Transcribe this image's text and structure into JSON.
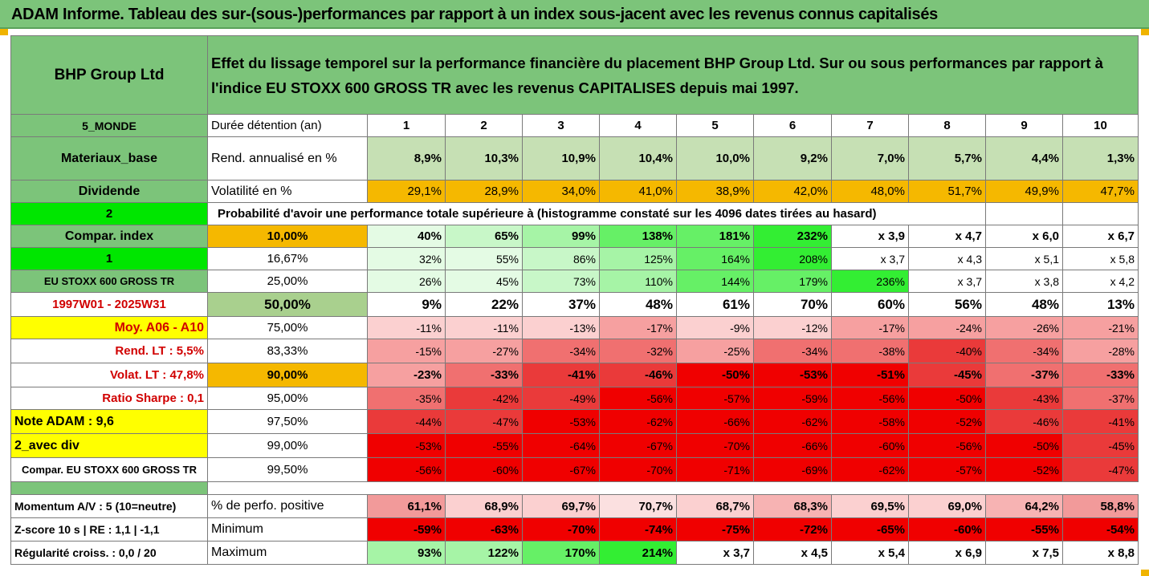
{
  "title": "ADAM Informe. Tableau des sur-(sous-)performances par rapport à un index sous-jacent avec les revenus connus capitalisés",
  "company": "BHP Group Ltd",
  "description_line1": "Effet du lissage temporel sur la performance financière du placement BHP Group Ltd. Sur ou sous performances par rapport à",
  "description_line2": "l'indice EU STOXX 600 GROSS TR avec les revenus CAPITALISES depuis mai 1997.",
  "left_labels": {
    "zone": "5_MONDE",
    "sector": "Materiaux_base",
    "dividend": "Dividende",
    "param": "2",
    "compar": "Compar. index",
    "param2": "1",
    "index_name": "EU STOXX 600 GROSS TR",
    "period": "1997W01 - 2025W31",
    "moy": "Moy. A06 - A10",
    "rend_lt": "Rend. LT :   5,5%",
    "volat_lt": "Volat. LT :   47,8%",
    "sharpe": "Ratio Sharpe :   0,1",
    "note": "Note ADAM : 9,6",
    "avec_div": "2_avec div",
    "compar_long": "Compar. EU STOXX 600 GROSS TR"
  },
  "header": {
    "label": "Durée détention (an)",
    "years": [
      "1",
      "2",
      "3",
      "4",
      "5",
      "6",
      "7",
      "8",
      "9",
      "10"
    ]
  },
  "rend": {
    "label": "Rend. annualisé en %",
    "values": [
      "8,9%",
      "10,3%",
      "10,9%",
      "10,4%",
      "10,0%",
      "9,2%",
      "7,0%",
      "5,7%",
      "4,4%",
      "1,3%"
    ]
  },
  "vol": {
    "label": "Volatilité en %",
    "values": [
      "29,1%",
      "28,9%",
      "34,0%",
      "41,0%",
      "38,9%",
      "42,0%",
      "48,0%",
      "51,7%",
      "49,9%",
      "47,7%"
    ]
  },
  "proba_label": "Probabilité d'avoir une performance totale supérieure à (histogramme constaté sur les 4096 dates tirées au hasard)",
  "prob_rows": [
    {
      "thr": "10,00%",
      "values": [
        "40%",
        "65%",
        "99%",
        "138%",
        "181%",
        "232%",
        "x 3,9",
        "x 4,7",
        "x 6,0",
        "x 6,7"
      ]
    },
    {
      "thr": "16,67%",
      "values": [
        "32%",
        "55%",
        "86%",
        "125%",
        "164%",
        "208%",
        "x 3,7",
        "x 4,3",
        "x 5,1",
        "x 5,8"
      ]
    },
    {
      "thr": "25,00%",
      "values": [
        "26%",
        "45%",
        "73%",
        "110%",
        "144%",
        "179%",
        "236%",
        "x 3,7",
        "x 3,8",
        "x 4,2"
      ]
    },
    {
      "thr": "50,00%",
      "values": [
        "9%",
        "22%",
        "37%",
        "48%",
        "61%",
        "70%",
        "60%",
        "56%",
        "48%",
        "13%"
      ]
    },
    {
      "thr": "75,00%",
      "values": [
        "-11%",
        "-11%",
        "-13%",
        "-17%",
        "-9%",
        "-12%",
        "-17%",
        "-24%",
        "-26%",
        "-21%"
      ]
    },
    {
      "thr": "83,33%",
      "values": [
        "-15%",
        "-27%",
        "-34%",
        "-32%",
        "-25%",
        "-34%",
        "-38%",
        "-40%",
        "-34%",
        "-28%"
      ]
    },
    {
      "thr": "90,00%",
      "values": [
        "-23%",
        "-33%",
        "-41%",
        "-46%",
        "-50%",
        "-53%",
        "-51%",
        "-45%",
        "-37%",
        "-33%"
      ]
    },
    {
      "thr": "95,00%",
      "values": [
        "-35%",
        "-42%",
        "-49%",
        "-56%",
        "-57%",
        "-59%",
        "-56%",
        "-50%",
        "-43%",
        "-37%"
      ]
    },
    {
      "thr": "97,50%",
      "values": [
        "-44%",
        "-47%",
        "-53%",
        "-62%",
        "-66%",
        "-62%",
        "-58%",
        "-52%",
        "-46%",
        "-41%"
      ]
    },
    {
      "thr": "99,00%",
      "values": [
        "-53%",
        "-55%",
        "-64%",
        "-67%",
        "-70%",
        "-66%",
        "-60%",
        "-56%",
        "-50%",
        "-45%"
      ]
    },
    {
      "thr": "99,50%",
      "values": [
        "-56%",
        "-60%",
        "-67%",
        "-70%",
        "-71%",
        "-69%",
        "-62%",
        "-57%",
        "-52%",
        "-47%"
      ]
    }
  ],
  "bottom_rows": [
    {
      "left": "Momentum A/V : 5 (10=neutre)",
      "label": "% de perfo. positive",
      "values": [
        "61,1%",
        "68,9%",
        "69,7%",
        "70,7%",
        "68,7%",
        "68,3%",
        "69,5%",
        "69,0%",
        "64,2%",
        "58,8%"
      ]
    },
    {
      "left": "Z-score 10 s  |  RE : 1,1  |  -1,1",
      "label": "Minimum",
      "values": [
        "-59%",
        "-63%",
        "-70%",
        "-74%",
        "-75%",
        "-72%",
        "-65%",
        "-60%",
        "-55%",
        "-54%"
      ]
    },
    {
      "left": "Régularité croiss. : 0,0 / 20",
      "label": "Maximum",
      "values": [
        "93%",
        "122%",
        "170%",
        "214%",
        "x 3,7",
        "x 4,5",
        "x 5,4",
        "x 6,9",
        "x 7,5",
        "x 8,8"
      ]
    }
  ],
  "colors": {
    "banner": "#7cc47a",
    "green_dark": "#7cc47a",
    "bright_green": "#00e600",
    "orange": "#f5b800",
    "yellow": "#ffff00",
    "light_green": "#c6e0b4",
    "red_text": "#d10000"
  }
}
